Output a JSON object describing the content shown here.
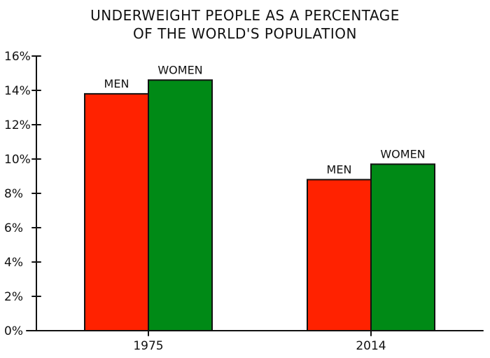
{
  "chart_data": {
    "type": "bar",
    "title": "UNDERWEIGHT PEOPLE AS A PERCENTAGE",
    "subtitle": "OF THE WORLD'S POPULATION",
    "categories": [
      "1975",
      "2014"
    ],
    "series": [
      {
        "name": "MEN",
        "values": [
          13.8,
          8.8
        ],
        "color": "#ff2200"
      },
      {
        "name": "WOMEN",
        "values": [
          14.6,
          9.7
        ],
        "color": "#008a16"
      }
    ],
    "bar_labels": [
      [
        "MEN",
        "WOMEN"
      ],
      [
        "MEN",
        "WOMEN"
      ]
    ],
    "ylim": [
      0,
      16
    ],
    "y_ticks": [
      0,
      2,
      4,
      6,
      8,
      10,
      12,
      14,
      16
    ],
    "y_tick_labels": [
      "0%",
      "2%",
      "4%",
      "6%",
      "8%",
      "10%",
      "12%",
      "14%",
      "16%"
    ],
    "grid": false,
    "legend": "none"
  }
}
